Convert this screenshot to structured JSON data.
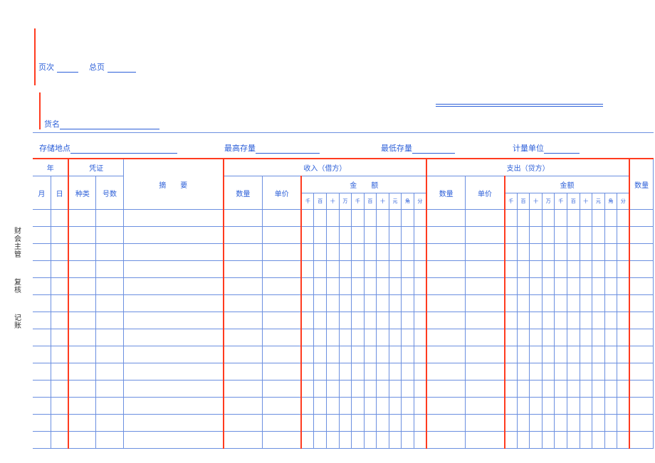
{
  "side": {
    "a": "财会主管",
    "b": "复核",
    "c": "记账"
  },
  "top": {
    "page_label": "页次",
    "total_label": "总页"
  },
  "meta": {
    "huoming": "货名",
    "cunchu": "存储地点",
    "zuigao": "最高存量",
    "zuidi": "最低存量",
    "jiliang": "计量单位"
  },
  "head": {
    "year": "年",
    "month": "月",
    "day": "日",
    "pingzheng": "凭证",
    "zhonglei": "种类",
    "haoshu": "号数",
    "zhaiyao": "摘　　要",
    "shouru": "收入（借方）",
    "zhichu": "支出（贷方）",
    "shuliang": "数量",
    "danjia": "单价",
    "jine": "金　　额",
    "jine2": "金额",
    "shl2": "数量",
    "digits": [
      "千",
      "百",
      "十",
      "万",
      "千",
      "百",
      "十",
      "元",
      "角",
      "分"
    ]
  },
  "grid": {
    "rows": 14
  },
  "colors": {
    "blue": "#2c5fd8",
    "red": "#ff3b1f",
    "grid": "#6b8fe0",
    "bg": "#ffffff"
  }
}
